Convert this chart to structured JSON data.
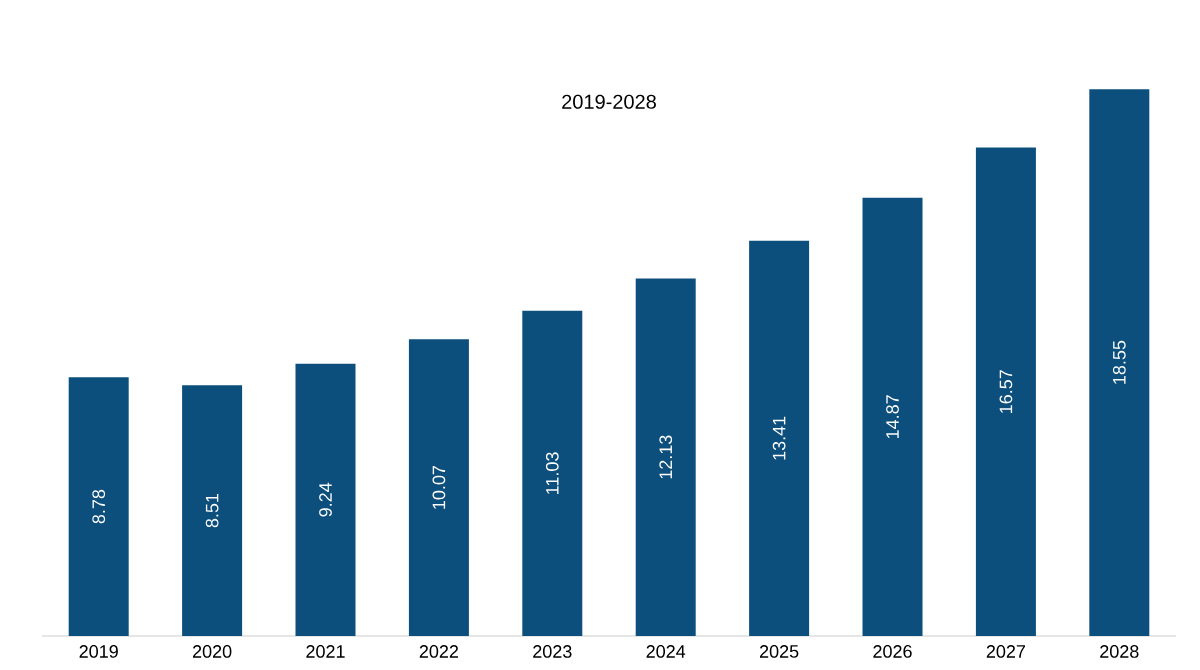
{
  "chart_data": {
    "type": "bar",
    "title": "2019-2028",
    "categories": [
      "2019",
      "2020",
      "2021",
      "2022",
      "2023",
      "2024",
      "2025",
      "2026",
      "2027",
      "2028"
    ],
    "values": [
      8.78,
      8.51,
      9.24,
      10.07,
      11.03,
      12.13,
      13.41,
      14.87,
      16.57,
      18.55
    ],
    "color": "#0d4f7c",
    "data_labels": true
  }
}
